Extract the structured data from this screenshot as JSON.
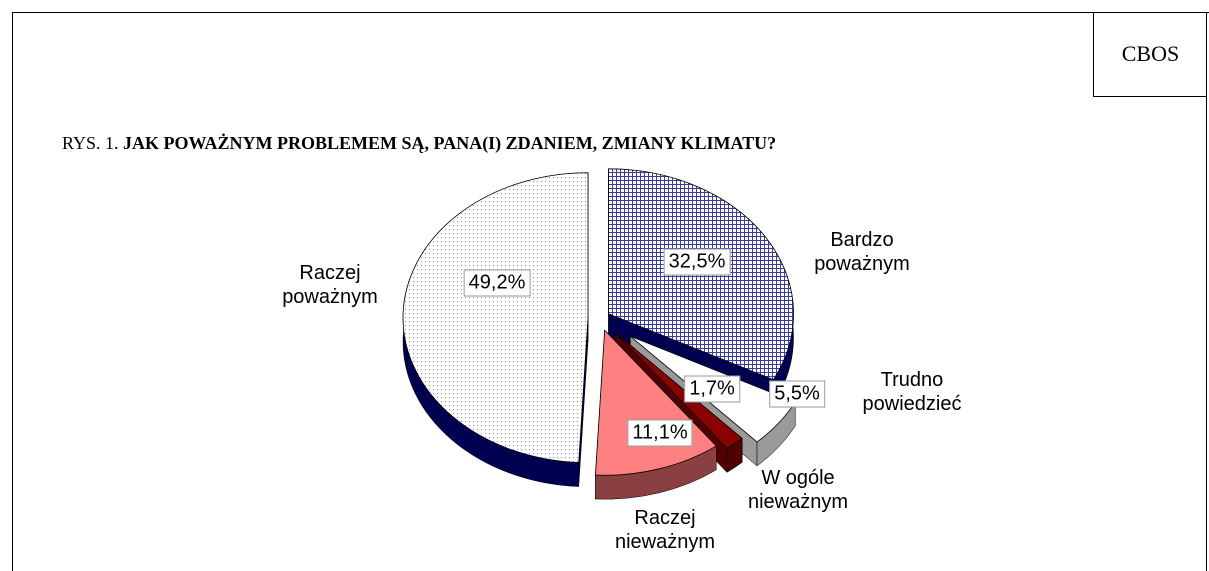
{
  "header": {
    "brand": "CBOS"
  },
  "chart_data": {
    "type": "pie3d",
    "title_prefix": "RYS. 1.",
    "title": "JAK POWAŻNYM PROBLEMEM SĄ, PANA(I) ZDANIEM, ZMIANY KLIMATU?",
    "categories": [
      "Bardzo poważnym",
      "Trudno powiedzieć",
      "W ogóle nieważnym",
      "Raczej nieważnym",
      "Raczej poważnym"
    ],
    "values": [
      32.5,
      5.5,
      1.7,
      11.1,
      49.2
    ],
    "value_labels": [
      "32,5%",
      "5,5%",
      "1,7%",
      "11,1%",
      "49,2%"
    ],
    "colors": [
      "#3a3aa8",
      "#ffffff",
      "#8b0000",
      "#ff8080",
      "#8a8a8a"
    ]
  }
}
